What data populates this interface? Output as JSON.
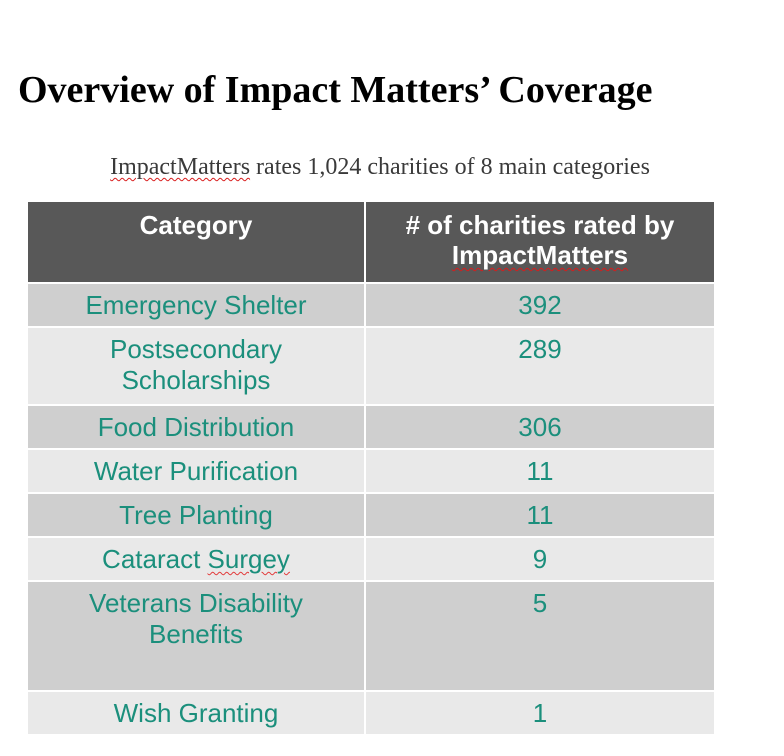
{
  "title": "Overview of Impact Matters’ Coverage",
  "subtitle": {
    "brand": "ImpactMatters",
    "rest": " rates 1,024 charities of 8 main categories"
  },
  "table": {
    "headers": {
      "category": "Category",
      "count_line1": "# of charities rated by",
      "count_line2": "ImpactMatters"
    },
    "rows": [
      {
        "category": "Emergency Shelter",
        "count": "392"
      },
      {
        "category_line1": "Postsecondary",
        "category_line2": "Scholarships",
        "count": "289"
      },
      {
        "category": "Food Distribution",
        "count": "306"
      },
      {
        "category": "Water Purification",
        "count": "11"
      },
      {
        "category": "Tree Planting",
        "count": "11"
      },
      {
        "category_pre": "Cataract ",
        "category_mis": "Surgey",
        "count": "9"
      },
      {
        "category_line1": "Veterans Disability",
        "category_line2": "Benefits",
        "count": "5"
      },
      {
        "category": "Wish Granting",
        "count": "1"
      }
    ]
  }
}
